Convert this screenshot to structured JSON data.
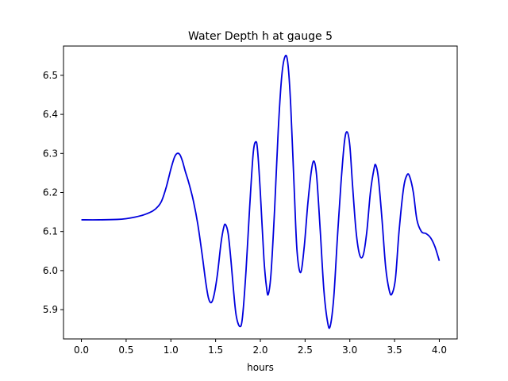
{
  "chart_data": {
    "type": "line",
    "title": "Water Depth h at gauge 5",
    "xlabel": "hours",
    "ylabel": "",
    "xlim": [
      -0.2,
      4.2
    ],
    "ylim": [
      5.825,
      6.575
    ],
    "xticks": [
      0.0,
      0.5,
      1.0,
      1.5,
      2.0,
      2.5,
      3.0,
      3.5,
      4.0
    ],
    "xtick_labels": [
      "0.0",
      "0.5",
      "1.0",
      "1.5",
      "2.0",
      "2.5",
      "3.0",
      "3.5",
      "4.0"
    ],
    "yticks": [
      5.9,
      6.0,
      6.1,
      6.2,
      6.3,
      6.4,
      6.5
    ],
    "ytick_labels": [
      "5.9",
      "6.0",
      "6.1",
      "6.2",
      "6.3",
      "6.4",
      "6.5"
    ],
    "grid": false,
    "series": [
      {
        "color": "#0000dd",
        "points": [
          [
            0.0,
            6.13
          ],
          [
            0.2,
            6.13
          ],
          [
            0.4,
            6.131
          ],
          [
            0.5,
            6.133
          ],
          [
            0.6,
            6.137
          ],
          [
            0.7,
            6.143
          ],
          [
            0.8,
            6.153
          ],
          [
            0.86,
            6.165
          ],
          [
            0.9,
            6.18
          ],
          [
            0.95,
            6.215
          ],
          [
            1.0,
            6.26
          ],
          [
            1.04,
            6.29
          ],
          [
            1.07,
            6.3
          ],
          [
            1.1,
            6.297
          ],
          [
            1.13,
            6.28
          ],
          [
            1.16,
            6.255
          ],
          [
            1.2,
            6.225
          ],
          [
            1.25,
            6.18
          ],
          [
            1.3,
            6.12
          ],
          [
            1.35,
            6.04
          ],
          [
            1.39,
            5.97
          ],
          [
            1.42,
            5.93
          ],
          [
            1.45,
            5.918
          ],
          [
            1.48,
            5.935
          ],
          [
            1.52,
            5.99
          ],
          [
            1.56,
            6.07
          ],
          [
            1.59,
            6.11
          ],
          [
            1.61,
            6.118
          ],
          [
            1.64,
            6.095
          ],
          [
            1.67,
            6.03
          ],
          [
            1.7,
            5.95
          ],
          [
            1.73,
            5.885
          ],
          [
            1.77,
            5.857
          ],
          [
            1.8,
            5.88
          ],
          [
            1.84,
            6.0
          ],
          [
            1.88,
            6.16
          ],
          [
            1.92,
            6.3
          ],
          [
            1.95,
            6.33
          ],
          [
            1.97,
            6.305
          ],
          [
            2.0,
            6.2
          ],
          [
            2.04,
            6.03
          ],
          [
            2.07,
            5.955
          ],
          [
            2.09,
            5.94
          ],
          [
            2.12,
            5.995
          ],
          [
            2.16,
            6.16
          ],
          [
            2.2,
            6.36
          ],
          [
            2.24,
            6.5
          ],
          [
            2.28,
            6.55
          ],
          [
            2.31,
            6.525
          ],
          [
            2.34,
            6.42
          ],
          [
            2.38,
            6.2
          ],
          [
            2.41,
            6.05
          ],
          [
            2.45,
            5.995
          ],
          [
            2.49,
            6.06
          ],
          [
            2.53,
            6.17
          ],
          [
            2.57,
            6.255
          ],
          [
            2.6,
            6.28
          ],
          [
            2.63,
            6.24
          ],
          [
            2.67,
            6.1
          ],
          [
            2.71,
            5.95
          ],
          [
            2.75,
            5.87
          ],
          [
            2.78,
            5.857
          ],
          [
            2.82,
            5.93
          ],
          [
            2.86,
            6.08
          ],
          [
            2.9,
            6.22
          ],
          [
            2.94,
            6.33
          ],
          [
            2.97,
            6.355
          ],
          [
            3.0,
            6.32
          ],
          [
            3.03,
            6.22
          ],
          [
            3.07,
            6.1
          ],
          [
            3.11,
            6.04
          ],
          [
            3.15,
            6.04
          ],
          [
            3.19,
            6.1
          ],
          [
            3.23,
            6.2
          ],
          [
            3.27,
            6.26
          ],
          [
            3.29,
            6.27
          ],
          [
            3.32,
            6.235
          ],
          [
            3.36,
            6.13
          ],
          [
            3.4,
            6.01
          ],
          [
            3.44,
            5.95
          ],
          [
            3.47,
            5.94
          ],
          [
            3.51,
            5.98
          ],
          [
            3.55,
            6.1
          ],
          [
            3.6,
            6.21
          ],
          [
            3.64,
            6.245
          ],
          [
            3.67,
            6.24
          ],
          [
            3.71,
            6.2
          ],
          [
            3.75,
            6.13
          ],
          [
            3.8,
            6.1
          ],
          [
            3.85,
            6.095
          ],
          [
            3.9,
            6.085
          ],
          [
            3.95,
            6.062
          ],
          [
            4.0,
            6.025
          ]
        ]
      }
    ]
  }
}
